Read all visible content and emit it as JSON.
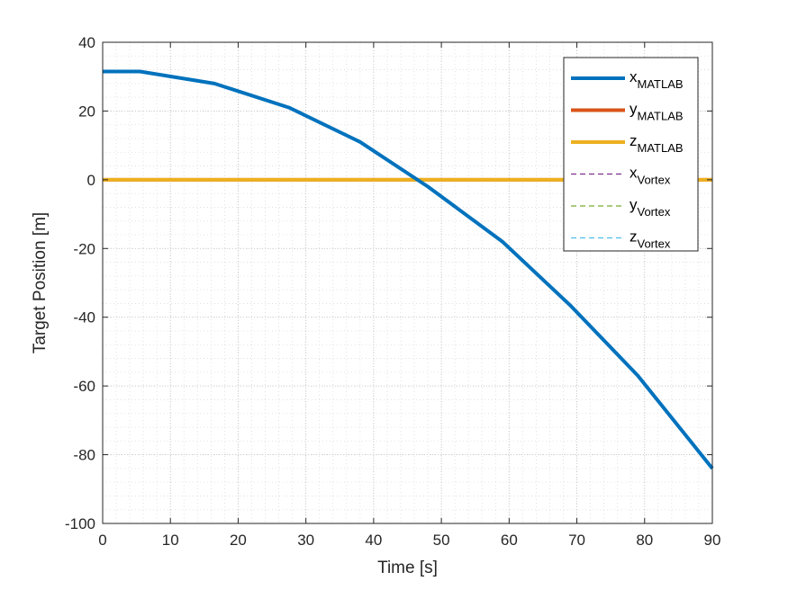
{
  "chart_data": {
    "type": "line",
    "xlabel": "Time [s]",
    "ylabel": "Target Position [m]",
    "xlim": [
      0,
      90
    ],
    "ylim": [
      -100,
      40
    ],
    "xticks": [
      0,
      10,
      20,
      30,
      40,
      50,
      60,
      70,
      80,
      90
    ],
    "yticks": [
      40,
      20,
      0,
      -20,
      -40,
      -60,
      -80,
      -100
    ],
    "grid": "on (major and minor, dotted)",
    "legend_placement": "top-right",
    "series": [
      {
        "name": "x",
        "sub": "MATLAB",
        "style": "solid",
        "color": "#0072BD",
        "x": [
          0,
          5.5,
          16.5,
          27.5,
          38,
          48,
          59,
          69,
          79,
          90
        ],
        "values": [
          31.5,
          31.5,
          28,
          21,
          11,
          -2,
          -18,
          -36.5,
          -57,
          -84
        ]
      },
      {
        "name": "y",
        "sub": "MATLAB",
        "style": "solid",
        "color": "#D95319",
        "x": [
          0,
          90
        ],
        "values": [
          0,
          0
        ]
      },
      {
        "name": "z",
        "sub": "MATLAB",
        "style": "solid",
        "color": "#EDB120",
        "x": [
          0,
          90
        ],
        "values": [
          0,
          0
        ]
      },
      {
        "name": "x",
        "sub": "Vortex",
        "style": "dashed",
        "color": "#7E2F8E",
        "x": [],
        "values": []
      },
      {
        "name": "y",
        "sub": "Vortex",
        "style": "dashed",
        "color": "#77AC30",
        "x": [],
        "values": []
      },
      {
        "name": "z",
        "sub": "Vortex",
        "style": "dashed",
        "color": "#4DBEEE",
        "x": [],
        "values": []
      }
    ]
  }
}
